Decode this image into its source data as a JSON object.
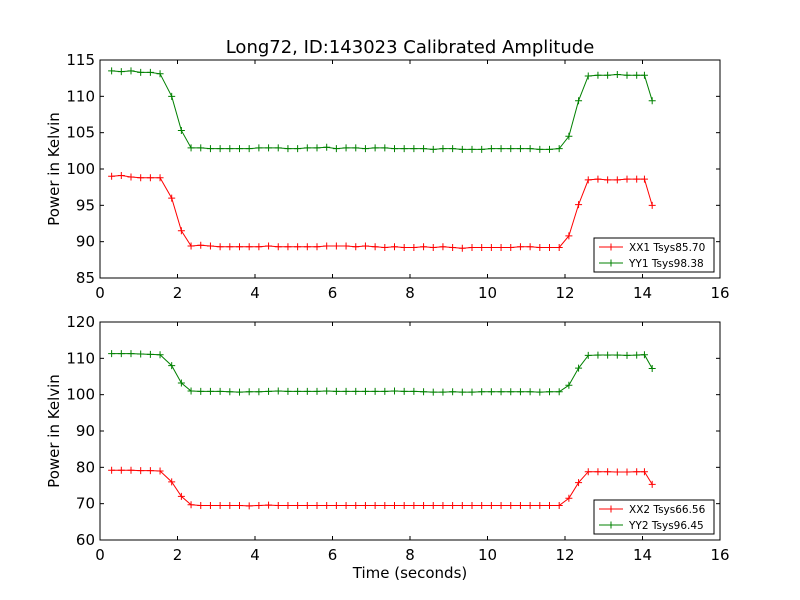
{
  "figure_title": "Long72, ID:143023 Calibrated Amplitude",
  "chart_data": [
    {
      "type": "line",
      "title": "Long72, ID:143023 Calibrated Amplitude",
      "xlabel": "",
      "ylabel": "Power in Kelvin",
      "xlim": [
        0,
        16
      ],
      "ylim": [
        85,
        115
      ],
      "xticks": [
        0,
        2,
        4,
        6,
        8,
        10,
        12,
        14,
        16
      ],
      "yticks": [
        85,
        90,
        95,
        100,
        105,
        110,
        115
      ],
      "grid": false,
      "legend_position": "lower-right",
      "x": [
        0.3,
        0.55,
        0.8,
        1.05,
        1.3,
        1.55,
        1.85,
        2.1,
        2.35,
        2.6,
        2.85,
        3.1,
        3.35,
        3.6,
        3.85,
        4.1,
        4.35,
        4.6,
        4.85,
        5.1,
        5.35,
        5.6,
        5.85,
        6.1,
        6.35,
        6.6,
        6.85,
        7.1,
        7.35,
        7.6,
        7.85,
        8.1,
        8.35,
        8.6,
        8.85,
        9.1,
        9.35,
        9.6,
        9.85,
        10.1,
        10.35,
        10.6,
        10.85,
        11.1,
        11.35,
        11.6,
        11.85,
        12.1,
        12.35,
        12.6,
        12.85,
        13.1,
        13.35,
        13.6,
        13.85,
        14.05,
        14.25
      ],
      "series": [
        {
          "name": "XX1 Tsys85.70",
          "color": "#ff0000",
          "values": [
            99.0,
            99.1,
            98.9,
            98.8,
            98.8,
            98.8,
            96.0,
            91.5,
            89.4,
            89.5,
            89.4,
            89.3,
            89.3,
            89.3,
            89.3,
            89.3,
            89.4,
            89.3,
            89.3,
            89.3,
            89.3,
            89.3,
            89.4,
            89.4,
            89.4,
            89.3,
            89.4,
            89.3,
            89.2,
            89.3,
            89.2,
            89.2,
            89.3,
            89.2,
            89.3,
            89.2,
            89.1,
            89.2,
            89.2,
            89.2,
            89.2,
            89.2,
            89.3,
            89.3,
            89.2,
            89.2,
            89.2,
            90.8,
            95.1,
            98.5,
            98.6,
            98.5,
            98.5,
            98.6,
            98.6,
            98.6,
            95.0
          ]
        },
        {
          "name": "YY1 Tsys98.38",
          "color": "#008000",
          "values": [
            113.5,
            113.4,
            113.5,
            113.3,
            113.3,
            113.1,
            110.0,
            105.3,
            102.9,
            102.9,
            102.8,
            102.8,
            102.8,
            102.8,
            102.8,
            102.9,
            102.9,
            102.9,
            102.8,
            102.8,
            102.9,
            102.9,
            103.0,
            102.8,
            102.9,
            102.9,
            102.8,
            102.9,
            102.9,
            102.8,
            102.8,
            102.8,
            102.8,
            102.7,
            102.8,
            102.8,
            102.7,
            102.7,
            102.7,
            102.8,
            102.8,
            102.8,
            102.8,
            102.8,
            102.7,
            102.7,
            102.8,
            104.5,
            109.4,
            112.8,
            112.9,
            112.9,
            113.0,
            112.9,
            112.9,
            112.9,
            109.4
          ]
        }
      ]
    },
    {
      "type": "line",
      "title": "",
      "xlabel": "Time (seconds)",
      "ylabel": "Power in Kelvin",
      "xlim": [
        0,
        16
      ],
      "ylim": [
        60,
        120
      ],
      "xticks": [
        0,
        2,
        4,
        6,
        8,
        10,
        12,
        14,
        16
      ],
      "yticks": [
        60,
        70,
        80,
        90,
        100,
        110,
        120
      ],
      "grid": false,
      "legend_position": "lower-right",
      "x": [
        0.3,
        0.55,
        0.8,
        1.05,
        1.3,
        1.55,
        1.85,
        2.1,
        2.35,
        2.6,
        2.85,
        3.1,
        3.35,
        3.6,
        3.85,
        4.1,
        4.35,
        4.6,
        4.85,
        5.1,
        5.35,
        5.6,
        5.85,
        6.1,
        6.35,
        6.6,
        6.85,
        7.1,
        7.35,
        7.6,
        7.85,
        8.1,
        8.35,
        8.6,
        8.85,
        9.1,
        9.35,
        9.6,
        9.85,
        10.1,
        10.35,
        10.6,
        10.85,
        11.1,
        11.35,
        11.6,
        11.85,
        12.1,
        12.35,
        12.6,
        12.85,
        13.1,
        13.35,
        13.6,
        13.85,
        14.05,
        14.25
      ],
      "series": [
        {
          "name": "XX2 Tsys66.56",
          "color": "#ff0000",
          "values": [
            79.2,
            79.2,
            79.2,
            79.1,
            79.1,
            79.0,
            76.0,
            72.0,
            69.7,
            69.5,
            69.5,
            69.5,
            69.5,
            69.5,
            69.4,
            69.5,
            69.6,
            69.5,
            69.5,
            69.5,
            69.5,
            69.5,
            69.5,
            69.5,
            69.5,
            69.5,
            69.5,
            69.5,
            69.5,
            69.5,
            69.5,
            69.5,
            69.5,
            69.5,
            69.5,
            69.5,
            69.5,
            69.5,
            69.5,
            69.5,
            69.5,
            69.5,
            69.5,
            69.5,
            69.5,
            69.5,
            69.5,
            71.5,
            75.8,
            78.8,
            78.8,
            78.8,
            78.7,
            78.7,
            78.8,
            78.8,
            75.3
          ]
        },
        {
          "name": "YY2 Tsys96.45",
          "color": "#008000",
          "values": [
            111.3,
            111.3,
            111.3,
            111.2,
            111.1,
            111.0,
            108.0,
            103.2,
            101.0,
            100.9,
            100.9,
            100.9,
            100.8,
            100.7,
            100.8,
            100.8,
            100.9,
            101.0,
            100.9,
            100.9,
            100.9,
            100.9,
            101.0,
            100.9,
            100.9,
            100.9,
            100.9,
            100.9,
            100.9,
            101.0,
            100.9,
            100.9,
            100.8,
            100.7,
            100.7,
            100.8,
            100.7,
            100.7,
            100.8,
            100.8,
            100.8,
            100.8,
            100.8,
            100.8,
            100.7,
            100.8,
            100.8,
            102.6,
            107.3,
            110.8,
            110.9,
            110.9,
            110.9,
            110.8,
            110.9,
            111.0,
            107.2
          ]
        }
      ]
    }
  ]
}
